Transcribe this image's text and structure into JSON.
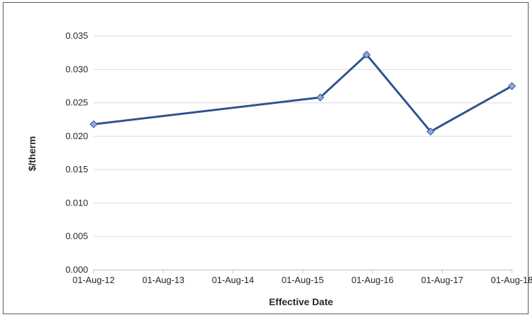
{
  "chart_data": {
    "type": "line",
    "title": "",
    "xlabel": "Effective Date",
    "ylabel": "$/therm",
    "x_tick_labels": [
      "01-Aug-12",
      "01-Aug-13",
      "01-Aug-14",
      "01-Aug-15",
      "01-Aug-16",
      "01-Aug-17",
      "01-Aug-18"
    ],
    "x_ticks": [
      "2012-08-01",
      "2013-08-01",
      "2014-08-01",
      "2015-08-01",
      "2016-08-01",
      "2017-08-01",
      "2018-08-01"
    ],
    "xlim": [
      "2012-08-01",
      "2018-08-01"
    ],
    "y_tick_labels": [
      "0.000",
      "0.005",
      "0.010",
      "0.015",
      "0.020",
      "0.025",
      "0.030",
      "0.035"
    ],
    "ylim": [
      0,
      0.035
    ],
    "grid": "horizontal",
    "legend": "none",
    "series": [
      {
        "color": "#2F528F",
        "marker_color": "#8FAADC",
        "marker": "diamond",
        "points": [
          {
            "x": "2012-08-01",
            "y": 0.0218
          },
          {
            "x": "2015-11-01",
            "y": 0.0258
          },
          {
            "x": "2016-07-01",
            "y": 0.0322
          },
          {
            "x": "2017-06-01",
            "y": 0.0207
          },
          {
            "x": "2018-08-01",
            "y": 0.0275
          }
        ]
      }
    ]
  }
}
